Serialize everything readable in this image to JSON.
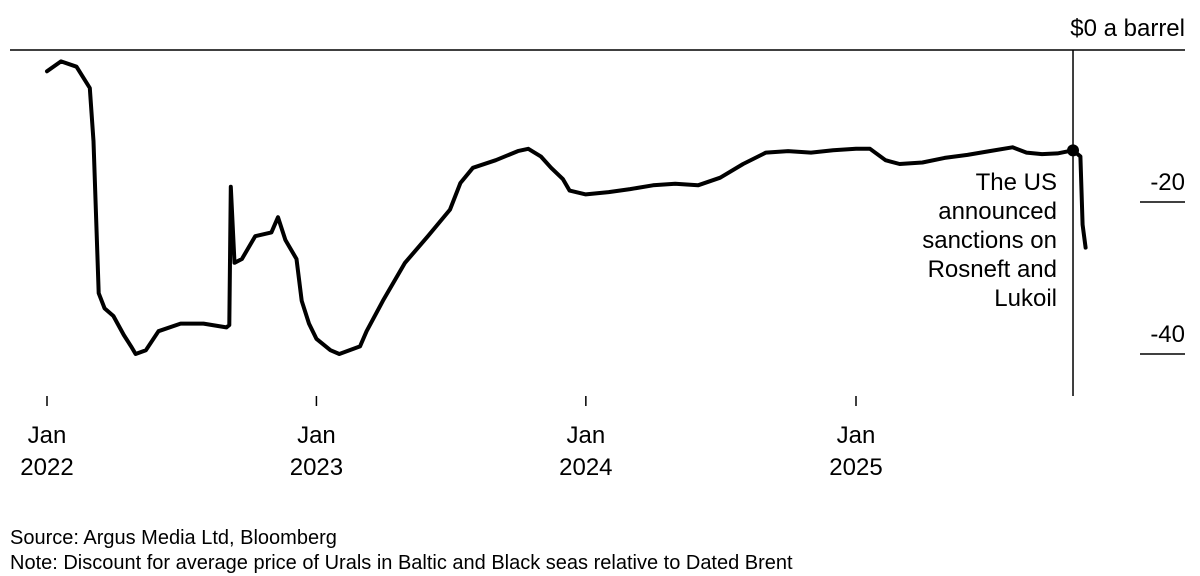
{
  "chart_data": {
    "type": "line",
    "title": "",
    "xlabel": "",
    "ylabel": "",
    "y_top_label": "$0 a barrel",
    "ylim": [
      -50,
      0
    ],
    "yticks": [
      {
        "value": -20,
        "label": "-20"
      },
      {
        "value": -40,
        "label": "-40"
      }
    ],
    "xticks": [
      {
        "date": "2022-01-01",
        "line1": "Jan",
        "line2": "2022"
      },
      {
        "date": "2023-01-01",
        "line1": "Jan",
        "line2": "2023"
      },
      {
        "date": "2024-01-01",
        "line1": "Jan",
        "line2": "2024"
      },
      {
        "date": "2025-01-01",
        "line1": "Jan",
        "line2": "2025"
      }
    ],
    "series": [
      {
        "points": [
          [
            "2022-01-01",
            -2.8
          ],
          [
            "2022-01-20",
            -1.5
          ],
          [
            "2022-02-10",
            -2.2
          ],
          [
            "2022-02-28",
            -5.0
          ],
          [
            "2022-03-05",
            -12.0
          ],
          [
            "2022-03-12",
            -32.0
          ],
          [
            "2022-03-20",
            -34.0
          ],
          [
            "2022-04-01",
            -35.0
          ],
          [
            "2022-04-15",
            -37.5
          ],
          [
            "2022-04-25",
            -39.0
          ],
          [
            "2022-05-01",
            -40.0
          ],
          [
            "2022-05-15",
            -39.5
          ],
          [
            "2022-06-01",
            -37.0
          ],
          [
            "2022-07-01",
            -36.0
          ],
          [
            "2022-08-01",
            -36.0
          ],
          [
            "2022-09-01",
            -36.5
          ],
          [
            "2022-09-05",
            -36.2
          ],
          [
            "2022-09-07",
            -18.0
          ],
          [
            "2022-09-12",
            -28.0
          ],
          [
            "2022-09-22",
            -27.5
          ],
          [
            "2022-10-10",
            -24.5
          ],
          [
            "2022-11-01",
            -24.0
          ],
          [
            "2022-11-10",
            -22.0
          ],
          [
            "2022-11-20",
            -25.0
          ],
          [
            "2022-12-05",
            -27.5
          ],
          [
            "2022-12-12",
            -33.0
          ],
          [
            "2022-12-22",
            -36.0
          ],
          [
            "2023-01-01",
            -38.0
          ],
          [
            "2023-01-20",
            -39.5
          ],
          [
            "2023-02-01",
            -40.0
          ],
          [
            "2023-03-01",
            -39.0
          ],
          [
            "2023-03-10",
            -37.0
          ],
          [
            "2023-04-01",
            -33.0
          ],
          [
            "2023-05-01",
            -28.0
          ],
          [
            "2023-06-01",
            -24.5
          ],
          [
            "2023-07-01",
            -21.0
          ],
          [
            "2023-07-15",
            -17.5
          ],
          [
            "2023-08-01",
            -15.5
          ],
          [
            "2023-09-01",
            -14.5
          ],
          [
            "2023-10-01",
            -13.3
          ],
          [
            "2023-10-15",
            -13.0
          ],
          [
            "2023-11-01",
            -14.0
          ],
          [
            "2023-11-15",
            -15.5
          ],
          [
            "2023-12-01",
            -17.0
          ],
          [
            "2023-12-10",
            -18.5
          ],
          [
            "2024-01-01",
            -19.0
          ],
          [
            "2024-02-01",
            -18.7
          ],
          [
            "2024-03-01",
            -18.3
          ],
          [
            "2024-04-01",
            -17.8
          ],
          [
            "2024-05-01",
            -17.6
          ],
          [
            "2024-06-01",
            -17.8
          ],
          [
            "2024-07-01",
            -16.8
          ],
          [
            "2024-08-01",
            -15.0
          ],
          [
            "2024-09-01",
            -13.5
          ],
          [
            "2024-10-01",
            -13.3
          ],
          [
            "2024-11-01",
            -13.5
          ],
          [
            "2024-12-01",
            -13.2
          ],
          [
            "2025-01-01",
            -13.0
          ],
          [
            "2025-01-20",
            -13.0
          ],
          [
            "2025-02-10",
            -14.5
          ],
          [
            "2025-03-01",
            -15.0
          ],
          [
            "2025-04-01",
            -14.8
          ],
          [
            "2025-05-01",
            -14.2
          ],
          [
            "2025-06-01",
            -13.8
          ],
          [
            "2025-07-01",
            -13.3
          ],
          [
            "2025-08-01",
            -12.8
          ],
          [
            "2025-08-20",
            -13.5
          ],
          [
            "2025-09-10",
            -13.7
          ],
          [
            "2025-10-01",
            -13.6
          ],
          [
            "2025-10-22",
            -13.2
          ],
          [
            "2025-11-01",
            -14.0
          ],
          [
            "2025-11-04",
            -23.0
          ],
          [
            "2025-11-08",
            -26.0
          ]
        ]
      }
    ],
    "event": {
      "date": "2025-10-22",
      "value": -13.2,
      "label_lines": [
        "The US",
        "announced",
        "sanctions on",
        "Rosneft and",
        "Lukoil"
      ]
    }
  },
  "footer": {
    "source": "Source: Argus Media Ltd, Bloomberg",
    "note": "Note: Discount for average price of Urals in Baltic and Black seas relative to Dated Brent"
  }
}
